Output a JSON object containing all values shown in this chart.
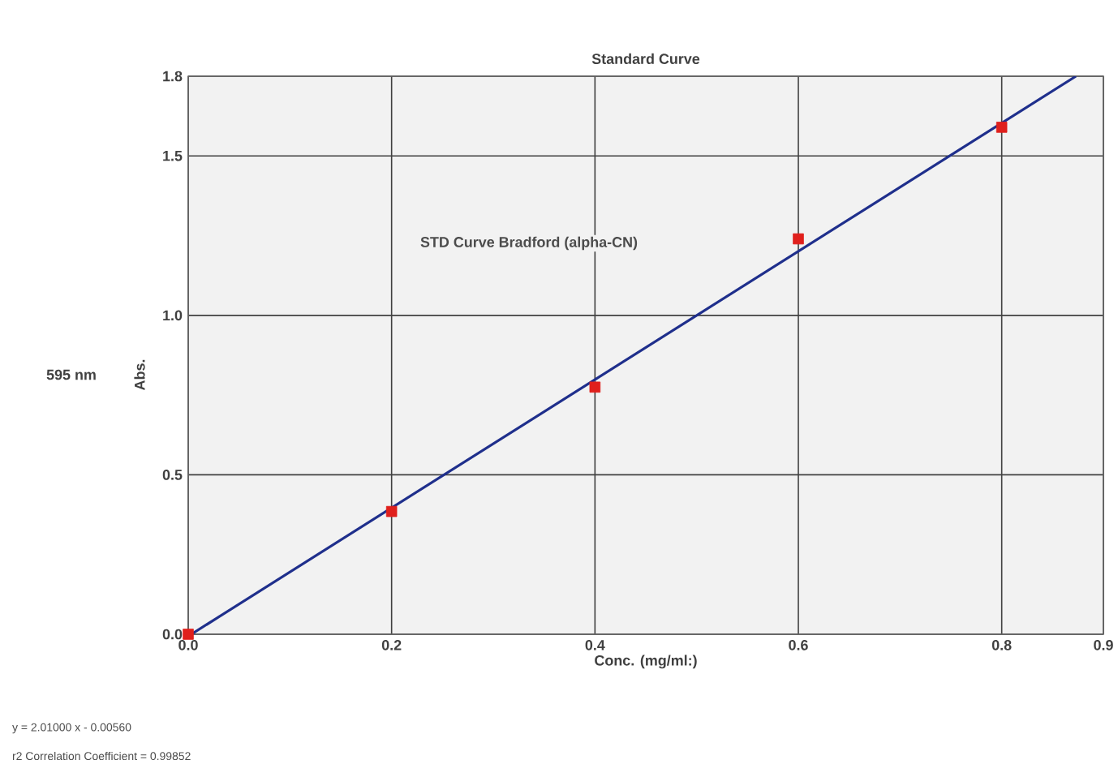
{
  "chart_data": {
    "type": "scatter",
    "title": "Standard Curve",
    "xlabel": "Conc. (mg/ml:)",
    "ylabel": "Abs.",
    "annotations": [
      "595 nm",
      "STD Curve Bradford (alpha-CN)",
      "y = 2.01000 x - 0.00560",
      "r2 Correlation Coefficient = 0.99852"
    ],
    "series": [
      {
        "color": "#e0201c",
        "marker": "square",
        "x": [
          0,
          0.2,
          0.4,
          0.6,
          0.8
        ],
        "values": [
          0.0,
          0.385,
          0.775,
          1.24,
          1.59
        ]
      },
      {
        "type": "line",
        "color": "#1f2f8c",
        "x": [
          0.003,
          0.873
        ],
        "values": [
          0,
          1.75
        ]
      }
    ],
    "xlim": [
      0,
      0.9
    ],
    "ylim": [
      0,
      1.75
    ],
    "xticks": [
      {
        "value": 0,
        "label": "0.0"
      },
      0.2,
      0.4,
      0.6,
      0.8,
      0.9
    ],
    "yticks": [
      {
        "value": 0,
        "label": "0.0"
      },
      0.5,
      {
        "value": 1.0,
        "label": "1.0"
      },
      1.5,
      {
        "value": 1.75,
        "label": "1.8"
      }
    ],
    "grid": true
  }
}
